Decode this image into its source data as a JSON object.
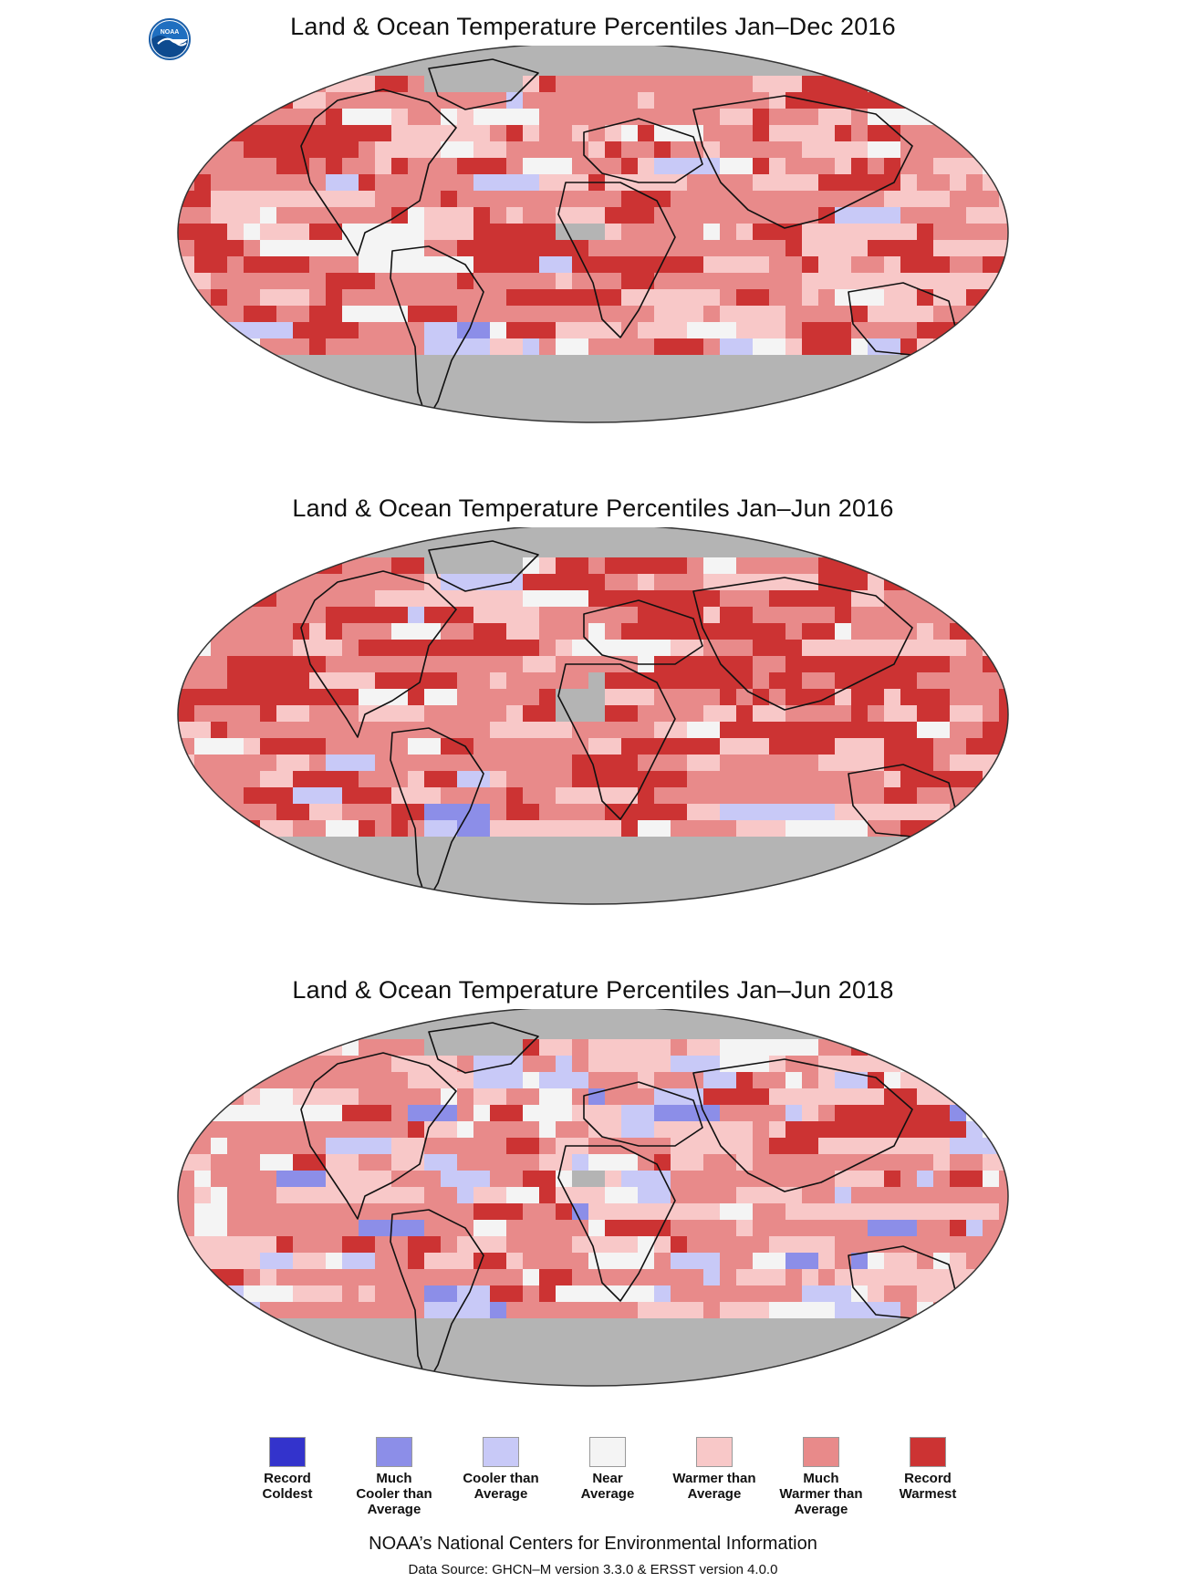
{
  "header": {
    "logo_text": "NOAA"
  },
  "maps": [
    {
      "title": "Land & Ocean Temperature Percentiles Jan–Dec 2016",
      "dominant": "warm-strong"
    },
    {
      "title": "Land & Ocean Temperature Percentiles Jan–Jun 2016",
      "dominant": "warm-record"
    },
    {
      "title": "Land & Ocean Temperature Percentiles Jan–Jun 2018",
      "dominant": "warm-mixed"
    }
  ],
  "legend": {
    "items": [
      {
        "label": "Record\nColdest",
        "color": "#3333cc"
      },
      {
        "label": "Much\nCooler than\nAverage",
        "color": "#8c8ee8"
      },
      {
        "label": "Cooler than\nAverage",
        "color": "#c8c9f7"
      },
      {
        "label": "Near\nAverage",
        "color": "#f4f4f4"
      },
      {
        "label": "Warmer than\nAverage",
        "color": "#f8c8c8"
      },
      {
        "label": "Much\nWarmer than\nAverage",
        "color": "#e88a8a"
      },
      {
        "label": "Record\nWarmest",
        "color": "#cc3333"
      }
    ]
  },
  "colors": {
    "no_data": "#b4b4b4",
    "record_warmest": "#cc3333",
    "much_warmer": "#e88a8a",
    "warmer": "#f8c8c8",
    "near": "#f4f4f4",
    "cooler": "#c8c9f7",
    "much_cooler": "#8c8ee8",
    "record_coldest": "#3333cc"
  },
  "footer": {
    "credit": "NOAA’s National Centers for Environmental Information",
    "source": "Data Source: GHCN–M version 3.3.0 & ERSST version 4.0.0"
  }
}
